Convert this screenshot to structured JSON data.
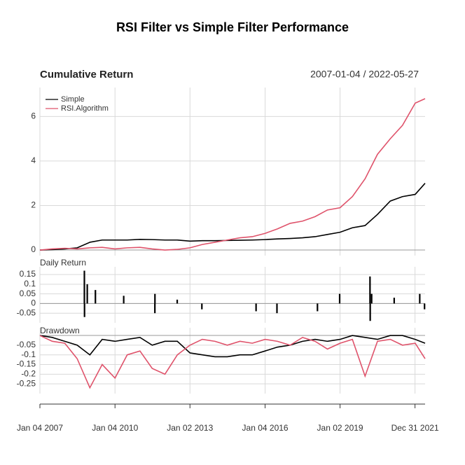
{
  "title": "RSI Filter vs Simple Filter Performance",
  "chart_data": [
    {
      "type": "line",
      "title": "Cumulative Return",
      "subtitle": "2007-01-04 / 2022-05-27",
      "x": [
        "2007-01-04",
        "2007-07-02",
        "2008-01-02",
        "2008-07-01",
        "2009-01-02",
        "2009-07-01",
        "2010-01-04",
        "2010-07-01",
        "2011-01-03",
        "2011-07-01",
        "2012-01-03",
        "2012-07-02",
        "2013-01-02",
        "2013-07-01",
        "2014-01-02",
        "2014-07-01",
        "2015-01-02",
        "2015-07-01",
        "2016-01-04",
        "2016-07-01",
        "2017-01-03",
        "2017-07-03",
        "2018-01-02",
        "2018-07-02",
        "2019-01-02",
        "2019-07-01",
        "2020-01-02",
        "2020-07-01",
        "2021-01-04",
        "2021-07-01",
        "2022-01-03",
        "2022-05-27"
      ],
      "series": [
        {
          "name": "Simple",
          "color": "#000000",
          "values": [
            0,
            0.02,
            0.05,
            0.1,
            0.35,
            0.45,
            0.45,
            0.45,
            0.48,
            0.47,
            0.45,
            0.45,
            0.4,
            0.42,
            0.42,
            0.43,
            0.44,
            0.45,
            0.47,
            0.5,
            0.52,
            0.55,
            0.6,
            0.7,
            0.8,
            1.0,
            1.1,
            1.6,
            2.2,
            2.4,
            2.5,
            3.0
          ]
        },
        {
          "name": "RSI.Algorithm",
          "color": "#df536b",
          "values": [
            0,
            0.05,
            0.08,
            0.05,
            0.1,
            0.12,
            0.05,
            0.1,
            0.12,
            0.05,
            0.0,
            0.03,
            0.1,
            0.25,
            0.35,
            0.45,
            0.55,
            0.6,
            0.75,
            0.95,
            1.2,
            1.3,
            1.5,
            1.8,
            1.9,
            2.4,
            3.2,
            4.3,
            5.0,
            5.6,
            6.6,
            6.8
          ]
        }
      ],
      "xlim": [
        "2007-01-04",
        "2022-05-27"
      ],
      "ylim": [
        -0.25,
        7.3
      ],
      "yticks": [
        0,
        2,
        4,
        6
      ],
      "grid": true,
      "legend": "top-left"
    },
    {
      "type": "bar",
      "title": "Daily Return",
      "x": [
        "2008-10-13",
        "2008-10-15",
        "2008-11-24",
        "2009-03-23",
        "2010-05-10",
        "2011-08-08",
        "2011-08-09",
        "2012-06-29",
        "2013-06-24",
        "2015-08-24",
        "2016-06-24",
        "2018-02-05",
        "2018-12-26",
        "2020-03-13",
        "2020-03-16",
        "2020-04-06",
        "2021-03-01",
        "2022-03-09",
        "2022-05-18"
      ],
      "values": [
        0.17,
        -0.07,
        0.1,
        0.07,
        0.04,
        -0.05,
        0.05,
        0.02,
        -0.03,
        -0.04,
        -0.05,
        -0.04,
        0.05,
        0.14,
        -0.09,
        0.05,
        0.03,
        0.05,
        -0.03
      ],
      "color": "#000000",
      "xlim": [
        "2007-01-04",
        "2022-05-27"
      ],
      "ylim": [
        -0.1,
        0.19
      ],
      "yticks": [
        -0.05,
        0,
        0.05,
        0.1,
        0.15
      ],
      "grid": true
    },
    {
      "type": "line",
      "title": "Drawdown",
      "x": [
        "2007-01-04",
        "2007-07-02",
        "2008-01-02",
        "2008-07-01",
        "2009-01-02",
        "2009-07-01",
        "2010-01-04",
        "2010-07-01",
        "2011-01-03",
        "2011-07-01",
        "2012-01-03",
        "2012-07-02",
        "2013-01-02",
        "2013-07-01",
        "2014-01-02",
        "2014-07-01",
        "2015-01-02",
        "2015-07-01",
        "2016-01-04",
        "2016-07-01",
        "2017-01-03",
        "2017-07-03",
        "2018-01-02",
        "2018-07-02",
        "2019-01-02",
        "2019-07-01",
        "2020-01-02",
        "2020-07-01",
        "2021-01-04",
        "2021-07-01",
        "2022-01-03",
        "2022-05-27"
      ],
      "series": [
        {
          "name": "Simple",
          "color": "#000000",
          "values": [
            0,
            -0.01,
            -0.03,
            -0.05,
            -0.1,
            -0.02,
            -0.03,
            -0.02,
            -0.01,
            -0.05,
            -0.03,
            -0.03,
            -0.09,
            -0.1,
            -0.11,
            -0.11,
            -0.1,
            -0.1,
            -0.08,
            -0.06,
            -0.05,
            -0.03,
            -0.02,
            -0.03,
            -0.02,
            0,
            -0.01,
            -0.02,
            0,
            0,
            -0.02,
            -0.04
          ]
        },
        {
          "name": "RSI.Algorithm",
          "color": "#df536b",
          "values": [
            0,
            -0.03,
            -0.04,
            -0.12,
            -0.27,
            -0.15,
            -0.22,
            -0.1,
            -0.08,
            -0.17,
            -0.2,
            -0.1,
            -0.05,
            -0.02,
            -0.03,
            -0.05,
            -0.03,
            -0.04,
            -0.02,
            -0.03,
            -0.05,
            -0.01,
            -0.03,
            -0.07,
            -0.04,
            -0.02,
            -0.21,
            -0.03,
            -0.02,
            -0.05,
            -0.04,
            -0.12
          ]
        }
      ],
      "xlim": [
        "2007-01-04",
        "2022-05-27"
      ],
      "ylim": [
        -0.3,
        0.04
      ],
      "yticks": [
        -0.25,
        -0.2,
        -0.15,
        -0.1,
        -0.05
      ],
      "grid": true,
      "xticks": [
        {
          "value": "2007-01-04",
          "label": "Jan 04 2007"
        },
        {
          "value": "2010-01-04",
          "label": "Jan 04 2010"
        },
        {
          "value": "2013-01-02",
          "label": "Jan 02 2013"
        },
        {
          "value": "2016-01-04",
          "label": "Jan 04 2016"
        },
        {
          "value": "2019-01-02",
          "label": "Jan 02 2019"
        },
        {
          "value": "2021-12-31",
          "label": "Dec 31 2021"
        }
      ]
    }
  ]
}
